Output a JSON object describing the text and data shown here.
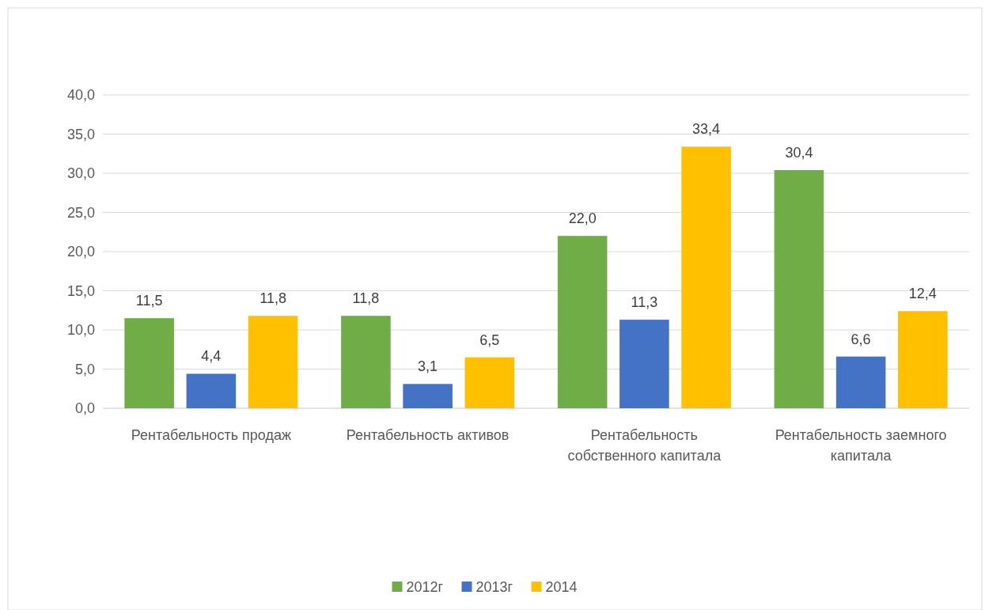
{
  "chart_data": {
    "type": "bar",
    "categories": [
      "Рентабельность продаж",
      "Рентабельность активов",
      "Рентабельность собственного капитала",
      "Рентабельность заемного капитала"
    ],
    "series": [
      {
        "name": "2012г",
        "color": "#70ad47",
        "values": [
          11.5,
          11.8,
          22.0,
          30.4
        ],
        "value_labels": [
          "11,5",
          "11,8",
          "22,0",
          "30,4"
        ]
      },
      {
        "name": "2013г",
        "color": "#4472c4",
        "values": [
          4.4,
          3.1,
          11.3,
          6.6
        ],
        "value_labels": [
          "4,4",
          "3,1",
          "11,3",
          "6,6"
        ]
      },
      {
        "name": "2014",
        "color": "#ffc000",
        "values": [
          11.8,
          6.5,
          33.4,
          12.4
        ],
        "value_labels": [
          "11,8",
          "6,5",
          "33,4",
          "12,4"
        ]
      }
    ],
    "ylim": [
      0,
      40
    ],
    "yticks": [
      {
        "value": 0,
        "label": "0,0"
      },
      {
        "value": 5,
        "label": "5,0"
      },
      {
        "value": 10,
        "label": "10,0"
      },
      {
        "value": 15,
        "label": "15,0"
      },
      {
        "value": 20,
        "label": "20,0"
      },
      {
        "value": 25,
        "label": "25,0"
      },
      {
        "value": 30,
        "label": "30,0"
      },
      {
        "value": 35,
        "label": "35,0"
      },
      {
        "value": 40,
        "label": "40,0"
      }
    ],
    "grid": "y",
    "legend": "bottom"
  }
}
